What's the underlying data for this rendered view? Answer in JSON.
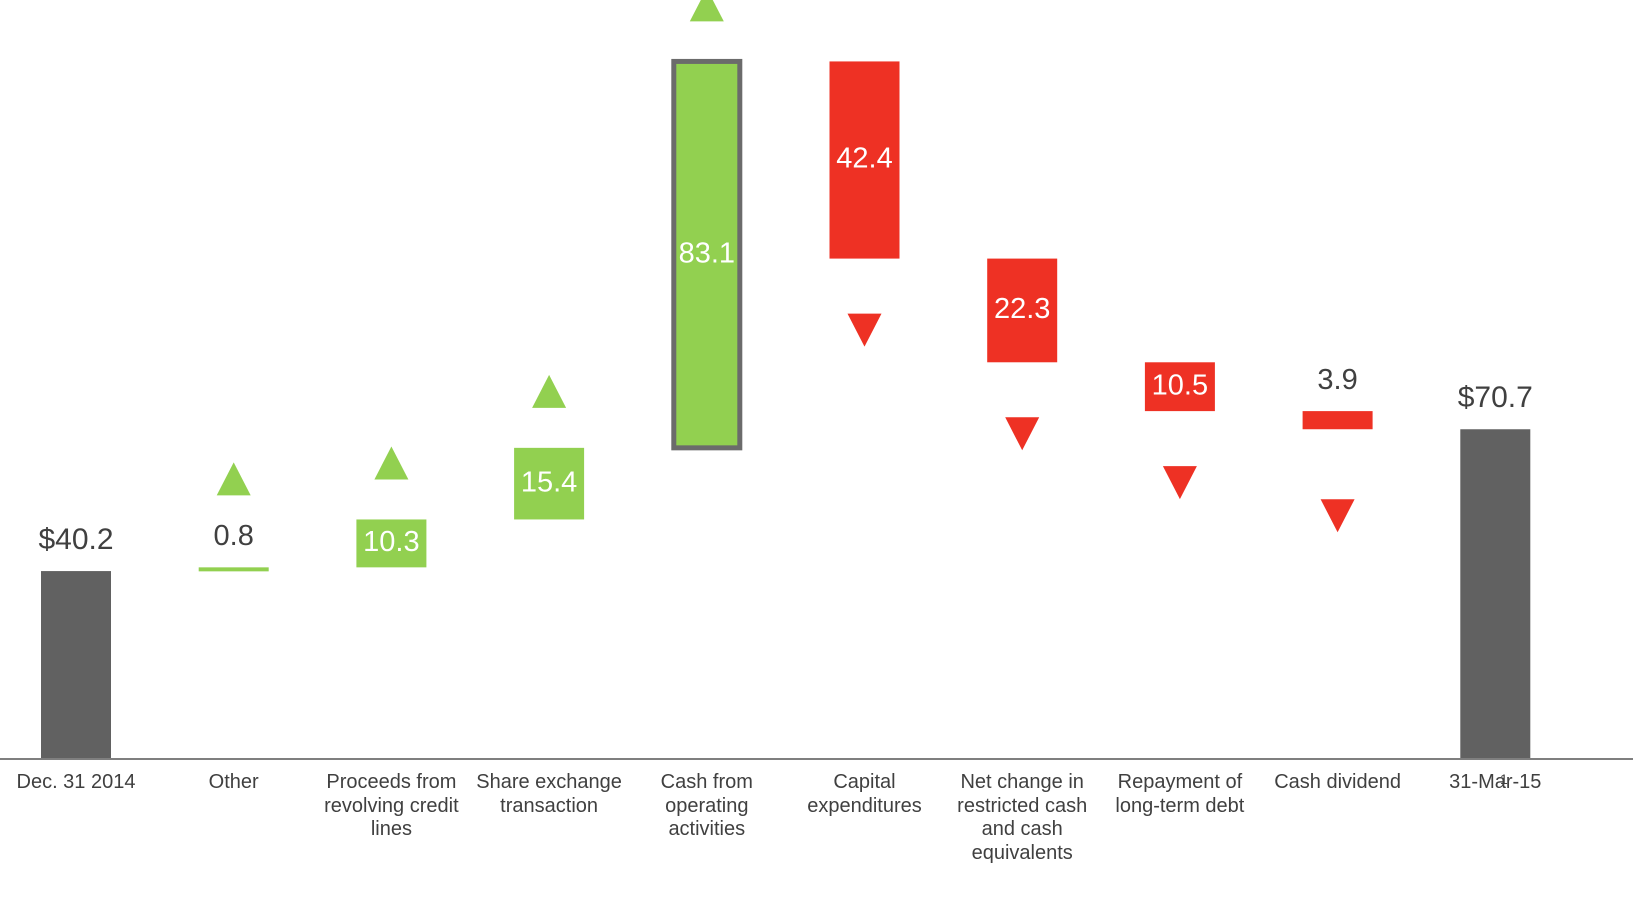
{
  "chart_data": {
    "type": "waterfall",
    "categories": [
      "Dec. 31 2014",
      "Other",
      "Proceeds from revolving credit lines",
      "Share exchange transaction",
      "Cash from operating activities",
      "Capital expenditures",
      "Net change in restricted cash and cash equivalents",
      "Repayment of long-term debt",
      "Cash dividend",
      "31-Mar-15"
    ],
    "values": [
      40.2,
      0.8,
      10.3,
      15.4,
      83.1,
      -42.4,
      -22.3,
      -10.5,
      -3.9,
      70.7
    ],
    "value_labels": [
      "$40.2",
      "0.8",
      "10.3",
      "15.4",
      "83.1",
      "42.4",
      "22.3",
      "10.5",
      "3.9",
      "$70.7"
    ],
    "totals": [
      0,
      9
    ],
    "colors": {
      "total": "#616161",
      "increase": "#92d050",
      "decrease": "#ee3124",
      "highlight_border": "#6b6b6b"
    },
    "highlight": 4,
    "page_number": "1"
  }
}
